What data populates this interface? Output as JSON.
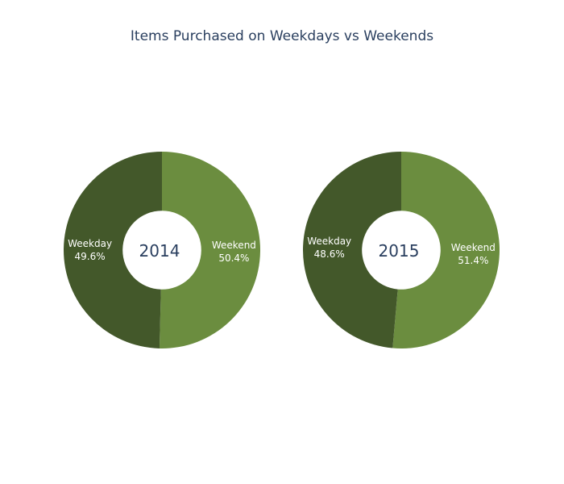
{
  "chart_data": {
    "type": "pie",
    "title": "Items Purchased on Weekdays vs Weekends",
    "hole": 0.4,
    "colors": {
      "Weekday": "#43582a",
      "Weekend": "#6b8d3f"
    },
    "charts": [
      {
        "label": "2014",
        "slices": [
          {
            "name": "Weekend",
            "value": 50.4,
            "text": "50.4%"
          },
          {
            "name": "Weekday",
            "value": 49.6,
            "text": "49.6%"
          }
        ]
      },
      {
        "label": "2015",
        "slices": [
          {
            "name": "Weekend",
            "value": 51.4,
            "text": "51.4%"
          },
          {
            "name": "Weekday",
            "value": 48.6,
            "text": "48.6%"
          }
        ]
      }
    ]
  }
}
